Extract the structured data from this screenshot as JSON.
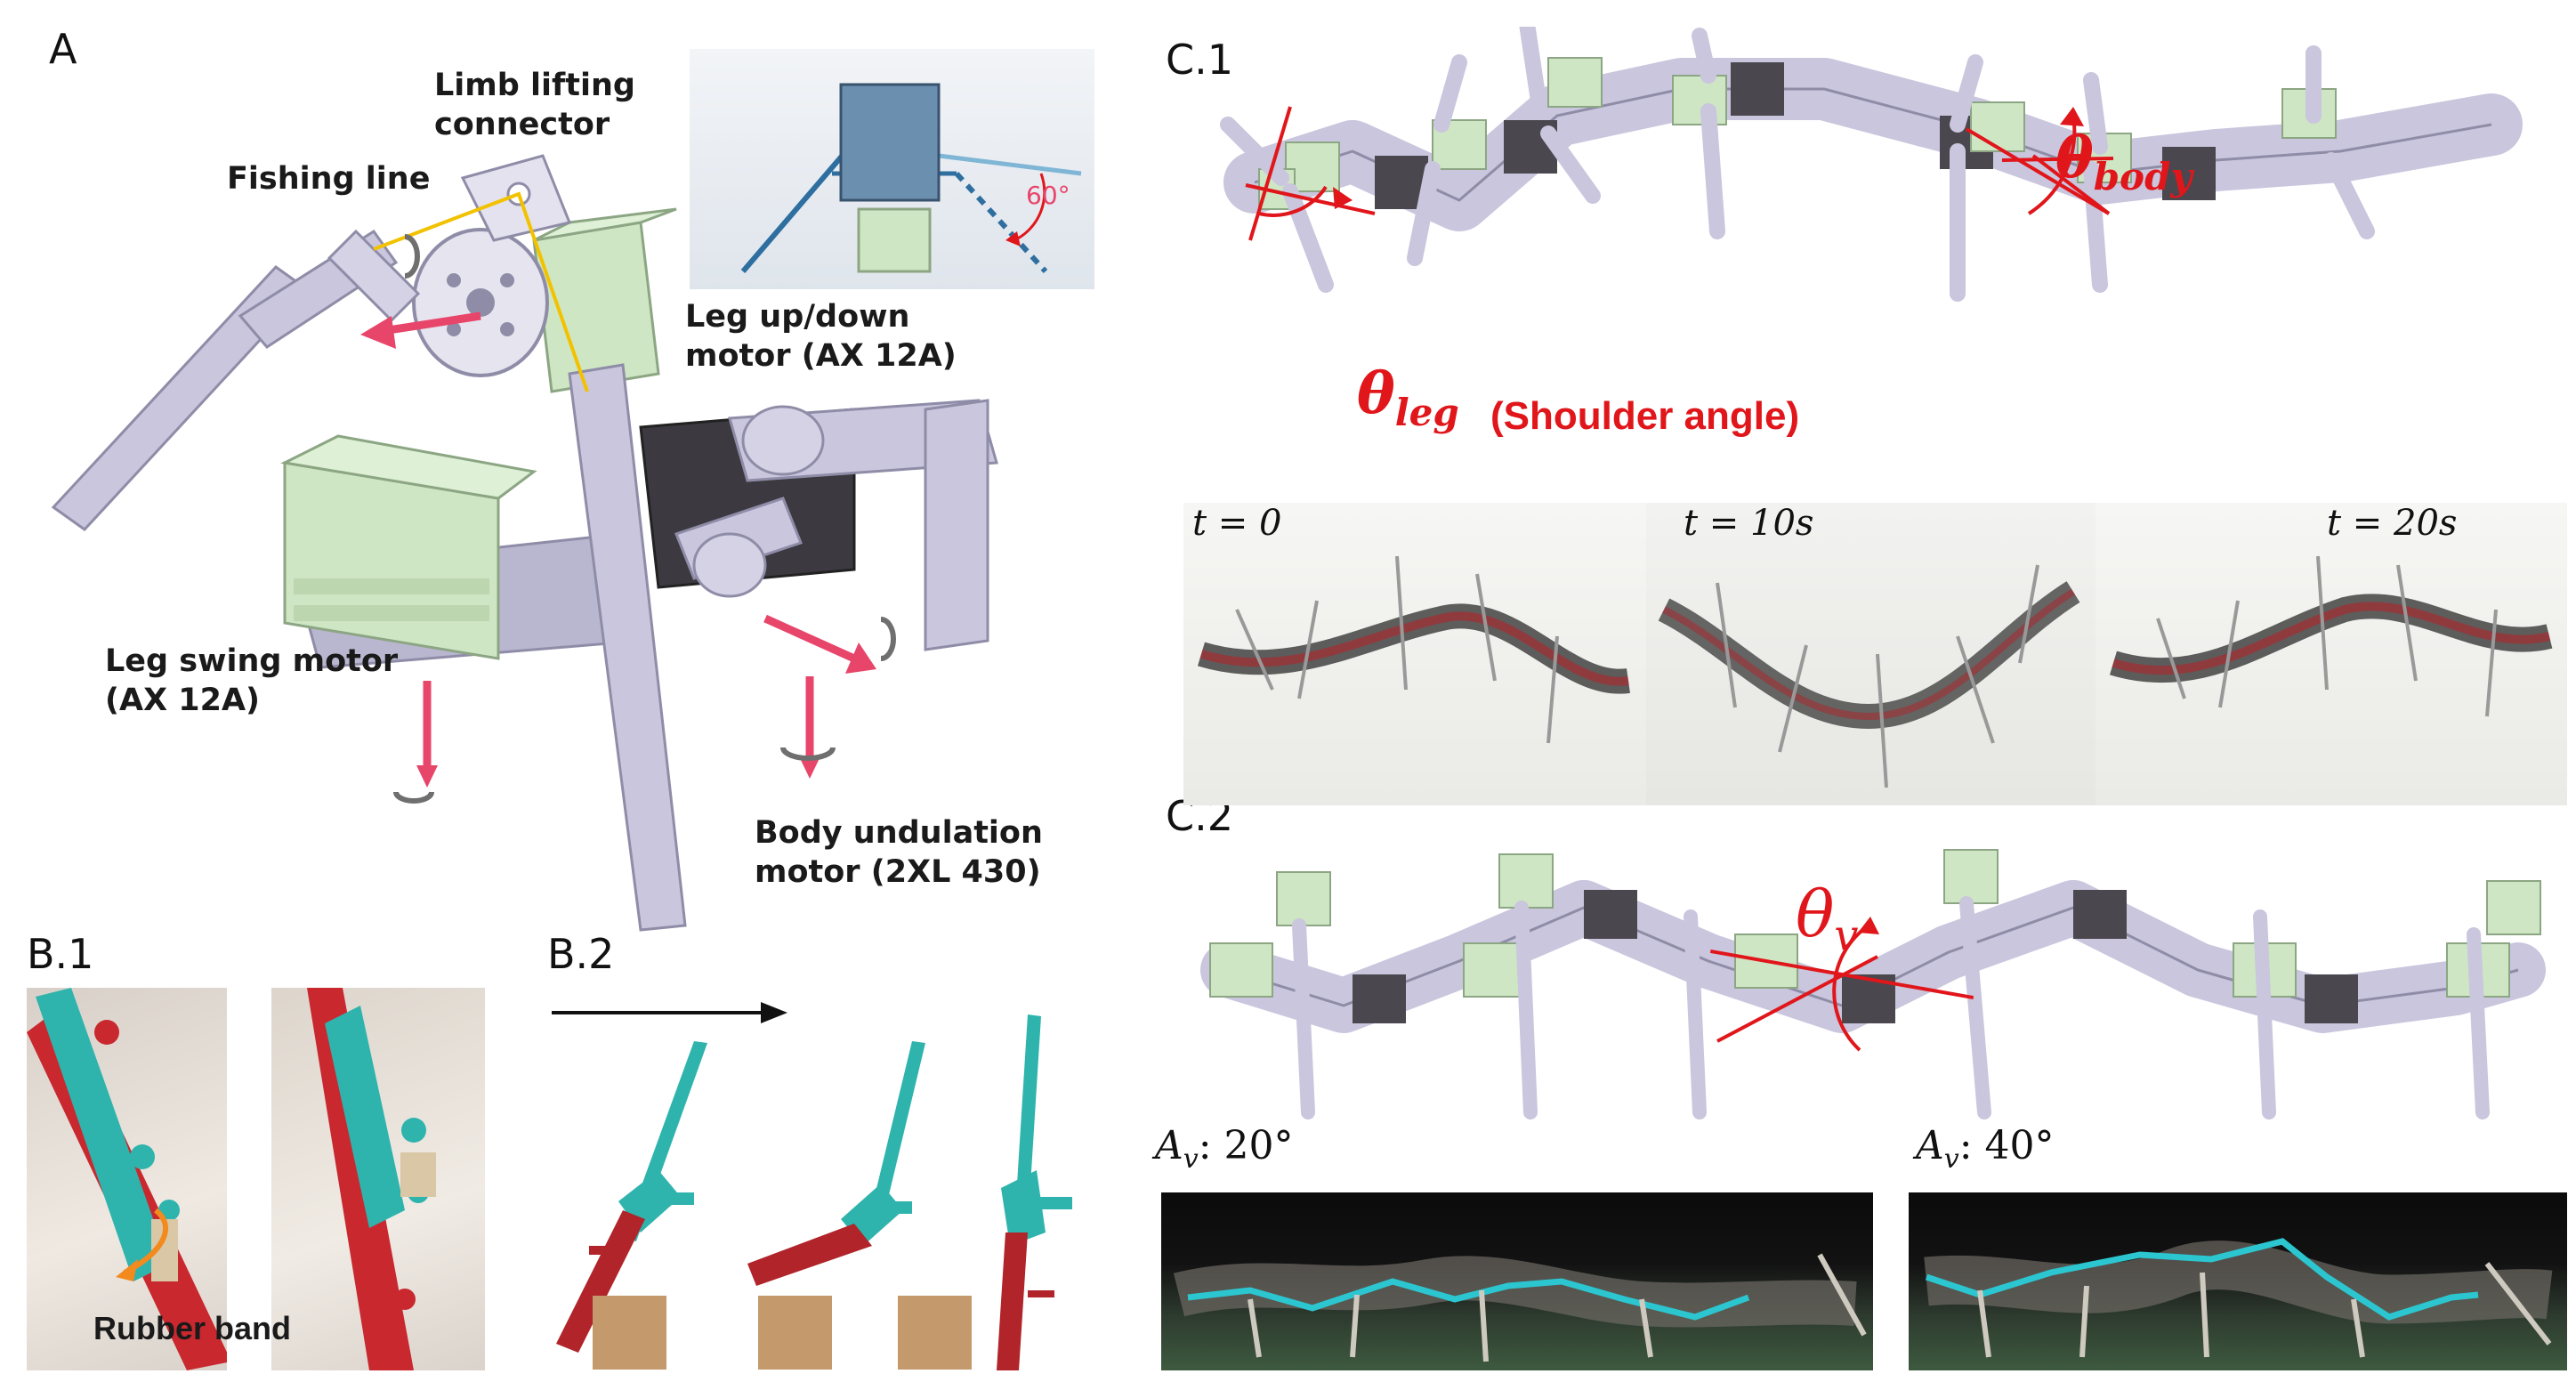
{
  "panels": {
    "a": "A",
    "b1": "B.1",
    "b2": "B.2",
    "c1": "C.1",
    "c2": "C.2"
  },
  "panel_a": {
    "limb_lifting_connector": "Limb lifting connector",
    "fishing_line": "Fishing line",
    "leg_up_down_motor": "Leg up/down motor (AX 12A)",
    "leg_swing_motor": "Leg swing motor (AX 12A)",
    "body_undulation_motor": "Body undulation motor (2XL 430)",
    "inset_angle": "60°"
  },
  "panel_b1": {
    "rubber_band": "Rubber band"
  },
  "panel_c1": {
    "theta_body": "θ",
    "theta_body_sub": "body",
    "theta_leg": "θ",
    "theta_leg_sub": "leg",
    "shoulder_angle": "(Shoulder angle)",
    "times": [
      "t = 0",
      "t = 10s",
      "t = 20s"
    ]
  },
  "panel_c2": {
    "theta_v": "θ",
    "theta_v_sub": "v",
    "amp_left": "A",
    "amp_left_sub": "v",
    "amp_left_value": ": 20°",
    "amp_right": "A",
    "amp_right_sub": "v",
    "amp_right_value": ": 40°"
  },
  "colors": {
    "robot_frame": "#c9c6dd",
    "motor_green": "#cfe6c4",
    "annotation_red": "#e0161b",
    "arrow_pink": "#e8456a",
    "leg_teal": "#2fb3ad",
    "leg_red": "#b0242a",
    "block_tan": "#c49a6c",
    "trajectory_cyan": "#2cc6d0",
    "fishing_line_yellow": "#f2c200"
  }
}
